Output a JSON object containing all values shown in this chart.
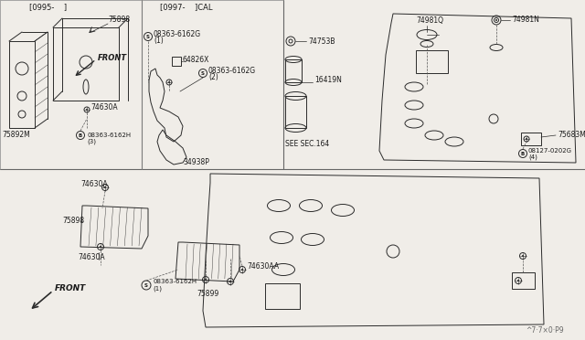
{
  "bg_color": "#f0ede8",
  "line_color": "#2a2a2a",
  "text_color": "#1a1a1a",
  "fig_width": 6.4,
  "fig_height": 3.72,
  "dpi": 100,
  "watermark": "^7·7×0·P9",
  "top_left_label": "[0995-    ]",
  "top_right_label": "[0997-    ]CAL",
  "labels": {
    "75898": "75898",
    "75892M": "75892M",
    "74630A": "74630A",
    "B08363_3": "B08363-6162H\n(3)",
    "S08363_1": "S08363-6162G\n(1)",
    "S08363_2": "S08363-6162G\n(2)",
    "64826X": "64826X",
    "34938P": "34938P",
    "74753B": "74753B",
    "16419N": "16419N",
    "74981Q": "74981Q",
    "74981N": "74981N",
    "75683M": "75683M",
    "B08127": "B08127-0202G\n(4)",
    "74630A_b": "74630A",
    "75898_b": "75898",
    "74630AA": "74630AA",
    "75899": "75899",
    "S08363_b1": "S08363-6162H\n(1)",
    "FRONT": "FRONT",
    "SEE_SEC": "SEE SEC.164"
  }
}
